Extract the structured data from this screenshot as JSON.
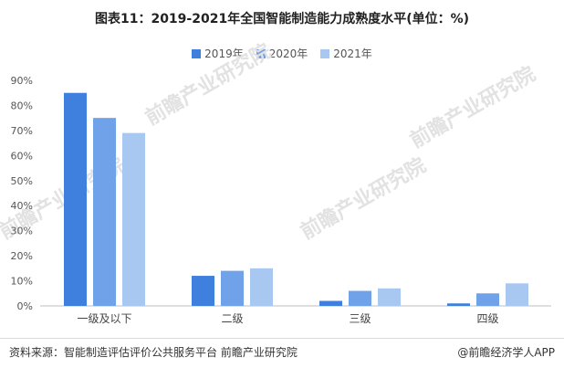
{
  "title": "图表11：2019-2021年全国智能制造能力成熟度水平(单位：%)",
  "source": "资料来源：智能制造评估评价公共服务平台  前瞻产业研究院",
  "brand": "@前瞻经济学人APP",
  "watermark": "前瞻产业研究院",
  "colors": {
    "2019年": "#3f7fde",
    "2020年": "#6fa2e8",
    "2021年": "#a8c8f2"
  },
  "chart_data": {
    "type": "bar",
    "title": "图表11：2019-2021年全国智能制造能力成熟度水平(单位：%)",
    "categories": [
      "一级及以下",
      "二级",
      "三级",
      "四级"
    ],
    "series": [
      {
        "name": "2019年",
        "values": [
          85,
          12,
          2,
          1
        ]
      },
      {
        "name": "2020年",
        "values": [
          75,
          14,
          6,
          5
        ]
      },
      {
        "name": "2021年",
        "values": [
          69,
          15,
          7,
          9
        ]
      }
    ],
    "ylim": [
      0,
      90
    ],
    "yticks": [
      "0%",
      "10%",
      "20%",
      "30%",
      "40%",
      "50%",
      "60%",
      "70%",
      "80%",
      "90%"
    ],
    "grid": false,
    "legend": "top-center"
  }
}
